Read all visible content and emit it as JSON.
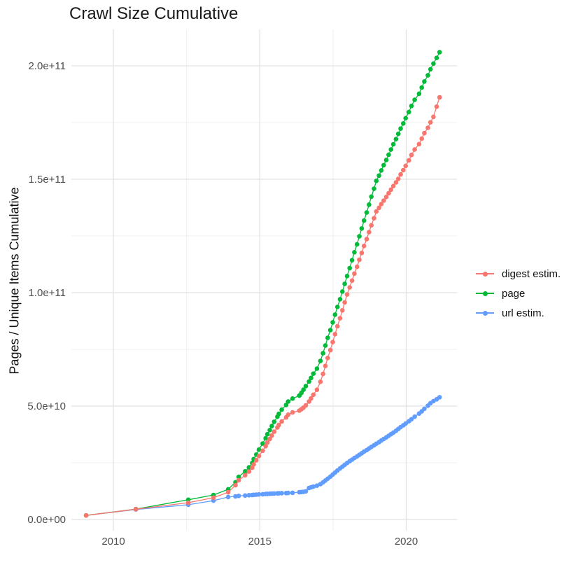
{
  "title": "Crawl Size Cumulative",
  "chart_data": {
    "type": "line",
    "title": "Crawl Size Cumulative",
    "xlabel": "",
    "ylabel": "Pages / Unique Items Cumulative",
    "grid": true,
    "legend_position": "right",
    "value_unit": "billions (1e9 items)",
    "x_range_years": [
      2008.6,
      2021.8
    ],
    "y_range_billions": [
      -5,
      220
    ],
    "x_ticks": {
      "values": [
        2010,
        2015,
        2020
      ],
      "labels": [
        "2010",
        "2015",
        "2020"
      ],
      "minor": [
        2012.5,
        2017.5
      ]
    },
    "y_ticks": {
      "values_billions": [
        0,
        50,
        100,
        150,
        200
      ],
      "labels": [
        "0.0e+00",
        "5.0e+10",
        "1.0e+11",
        "1.5e+11",
        "2.0e+11"
      ],
      "minor_billions": [
        25,
        75,
        125,
        175
      ]
    },
    "series": [
      {
        "name": "digest estim.",
        "color": "#F8766D",
        "points": [
          [
            2009.07,
            1.8
          ],
          [
            2010.77,
            4.55
          ],
          [
            2012.56,
            7.4
          ],
          [
            2013.42,
            9.6
          ],
          [
            2013.92,
            12.0
          ],
          [
            2014.17,
            15.1
          ],
          [
            2014.28,
            17.3
          ],
          [
            2014.5,
            19.5
          ],
          [
            2014.63,
            21.1
          ],
          [
            2014.74,
            22.8
          ],
          [
            2014.79,
            24.3
          ],
          [
            2014.88,
            26.1
          ],
          [
            2014.97,
            28.0
          ],
          [
            2015.1,
            30.3
          ],
          [
            2015.2,
            32.3
          ],
          [
            2015.26,
            33.9
          ],
          [
            2015.34,
            35.5
          ],
          [
            2015.41,
            37.0
          ],
          [
            2015.49,
            38.7
          ],
          [
            2015.6,
            40.6
          ],
          [
            2015.65,
            41.7
          ],
          [
            2015.75,
            43.2
          ],
          [
            2015.9,
            45.0
          ],
          [
            2015.97,
            46.2
          ],
          [
            2016.12,
            47.2
          ],
          [
            2016.35,
            48.0
          ],
          [
            2016.42,
            48.6
          ],
          [
            2016.49,
            49.3
          ],
          [
            2016.57,
            50.3
          ],
          [
            2016.68,
            52.0
          ],
          [
            2016.75,
            53.4
          ],
          [
            2016.83,
            55.0
          ],
          [
            2016.95,
            57.2
          ],
          [
            2017.07,
            60.7
          ],
          [
            2017.16,
            64.2
          ],
          [
            2017.24,
            67.7
          ],
          [
            2017.32,
            71.2
          ],
          [
            2017.41,
            74.7
          ],
          [
            2017.49,
            78.2
          ],
          [
            2017.57,
            81.7
          ],
          [
            2017.65,
            85.2
          ],
          [
            2017.74,
            88.7
          ],
          [
            2017.82,
            92.2
          ],
          [
            2017.9,
            95.7
          ],
          [
            2017.98,
            99.2
          ],
          [
            2018.07,
            102.3
          ],
          [
            2018.15,
            105.3
          ],
          [
            2018.23,
            108.4
          ],
          [
            2018.32,
            111.4
          ],
          [
            2018.4,
            114.5
          ],
          [
            2018.48,
            117.5
          ],
          [
            2018.56,
            120.6
          ],
          [
            2018.65,
            123.6
          ],
          [
            2018.73,
            126.7
          ],
          [
            2018.81,
            129.7
          ],
          [
            2018.9,
            132.8
          ],
          [
            2018.98,
            135.8
          ],
          [
            2019.07,
            137.4
          ],
          [
            2019.15,
            139.0
          ],
          [
            2019.23,
            140.6
          ],
          [
            2019.32,
            142.2
          ],
          [
            2019.4,
            143.8
          ],
          [
            2019.48,
            145.4
          ],
          [
            2019.56,
            147.0
          ],
          [
            2019.65,
            148.6
          ],
          [
            2019.73,
            150.2
          ],
          [
            2019.81,
            152.1
          ],
          [
            2019.9,
            154.0
          ],
          [
            2019.98,
            155.9
          ],
          [
            2020.09,
            158.3
          ],
          [
            2020.18,
            160.7
          ],
          [
            2020.29,
            163.1
          ],
          [
            2020.44,
            165.5
          ],
          [
            2020.53,
            167.9
          ],
          [
            2020.62,
            170.3
          ],
          [
            2020.74,
            172.7
          ],
          [
            2020.83,
            175.1
          ],
          [
            2020.93,
            177.5
          ],
          [
            2021.04,
            182.0
          ],
          [
            2021.14,
            186.1
          ]
        ]
      },
      {
        "name": "page",
        "color": "#00BA38",
        "points": [
          [
            2009.07,
            1.8
          ],
          [
            2010.77,
            4.6
          ],
          [
            2012.56,
            8.7
          ],
          [
            2013.42,
            10.8
          ],
          [
            2013.92,
            13.3
          ],
          [
            2014.17,
            16.4
          ],
          [
            2014.28,
            18.8
          ],
          [
            2014.5,
            21.2
          ],
          [
            2014.63,
            23.0
          ],
          [
            2014.74,
            24.9
          ],
          [
            2014.79,
            26.6
          ],
          [
            2014.88,
            28.6
          ],
          [
            2014.97,
            30.8
          ],
          [
            2015.1,
            33.5
          ],
          [
            2015.2,
            35.8
          ],
          [
            2015.26,
            37.6
          ],
          [
            2015.34,
            39.4
          ],
          [
            2015.41,
            41.2
          ],
          [
            2015.49,
            43.1
          ],
          [
            2015.6,
            45.3
          ],
          [
            2015.65,
            46.6
          ],
          [
            2015.75,
            48.4
          ],
          [
            2015.9,
            50.5
          ],
          [
            2015.97,
            52.0
          ],
          [
            2016.12,
            53.3
          ],
          [
            2016.35,
            54.6
          ],
          [
            2016.42,
            55.8
          ],
          [
            2016.49,
            57.2
          ],
          [
            2016.57,
            58.8
          ],
          [
            2016.68,
            60.8
          ],
          [
            2016.75,
            62.4
          ],
          [
            2016.83,
            64.3
          ],
          [
            2016.95,
            66.5
          ],
          [
            2017.07,
            69.9
          ],
          [
            2017.16,
            73.3
          ],
          [
            2017.24,
            76.7
          ],
          [
            2017.32,
            80.1
          ],
          [
            2017.41,
            83.5
          ],
          [
            2017.49,
            86.9
          ],
          [
            2017.57,
            90.3
          ],
          [
            2017.65,
            93.7
          ],
          [
            2017.74,
            97.1
          ],
          [
            2017.82,
            100.5
          ],
          [
            2017.9,
            103.9
          ],
          [
            2017.98,
            107.3
          ],
          [
            2018.07,
            110.8
          ],
          [
            2018.15,
            114.3
          ],
          [
            2018.23,
            117.8
          ],
          [
            2018.32,
            121.3
          ],
          [
            2018.4,
            124.8
          ],
          [
            2018.48,
            128.3
          ],
          [
            2018.56,
            131.8
          ],
          [
            2018.65,
            135.3
          ],
          [
            2018.73,
            138.8
          ],
          [
            2018.81,
            142.3
          ],
          [
            2018.9,
            145.8
          ],
          [
            2018.98,
            149.3
          ],
          [
            2019.07,
            151.6
          ],
          [
            2019.15,
            153.9
          ],
          [
            2019.23,
            156.2
          ],
          [
            2019.32,
            158.5
          ],
          [
            2019.4,
            160.8
          ],
          [
            2019.48,
            163.1
          ],
          [
            2019.56,
            165.4
          ],
          [
            2019.65,
            167.7
          ],
          [
            2019.73,
            170.0
          ],
          [
            2019.81,
            172.3
          ],
          [
            2019.9,
            174.6
          ],
          [
            2019.98,
            176.9
          ],
          [
            2020.09,
            179.6
          ],
          [
            2020.18,
            182.3
          ],
          [
            2020.29,
            185.0
          ],
          [
            2020.44,
            187.7
          ],
          [
            2020.53,
            190.4
          ],
          [
            2020.62,
            193.1
          ],
          [
            2020.74,
            195.8
          ],
          [
            2020.83,
            198.5
          ],
          [
            2020.93,
            201.0
          ],
          [
            2021.04,
            203.5
          ],
          [
            2021.14,
            206.0
          ]
        ]
      },
      {
        "name": "url estim.",
        "color": "#619CFF",
        "points": [
          [
            2009.07,
            1.8
          ],
          [
            2010.77,
            4.4
          ],
          [
            2012.56,
            6.5
          ],
          [
            2013.42,
            8.3
          ],
          [
            2013.92,
            9.9
          ],
          [
            2014.17,
            10.2
          ],
          [
            2014.28,
            10.4
          ],
          [
            2014.5,
            10.55
          ],
          [
            2014.63,
            10.7
          ],
          [
            2014.74,
            10.8
          ],
          [
            2014.79,
            10.85
          ],
          [
            2014.88,
            10.95
          ],
          [
            2014.97,
            11.05
          ],
          [
            2015.1,
            11.15
          ],
          [
            2015.2,
            11.25
          ],
          [
            2015.26,
            11.3
          ],
          [
            2015.34,
            11.35
          ],
          [
            2015.41,
            11.4
          ],
          [
            2015.49,
            11.45
          ],
          [
            2015.6,
            11.5
          ],
          [
            2015.65,
            11.55
          ],
          [
            2015.75,
            11.6
          ],
          [
            2015.9,
            11.65
          ],
          [
            2015.97,
            11.7
          ],
          [
            2016.12,
            11.75
          ],
          [
            2016.35,
            12.0
          ],
          [
            2016.42,
            12.1
          ],
          [
            2016.49,
            12.2
          ],
          [
            2016.57,
            12.4
          ],
          [
            2016.68,
            13.9
          ],
          [
            2016.75,
            14.2
          ],
          [
            2016.83,
            14.5
          ],
          [
            2016.95,
            14.9
          ],
          [
            2017.07,
            15.6
          ],
          [
            2017.16,
            16.4
          ],
          [
            2017.24,
            17.2
          ],
          [
            2017.32,
            18.0
          ],
          [
            2017.41,
            18.9
          ],
          [
            2017.49,
            19.8
          ],
          [
            2017.57,
            20.7
          ],
          [
            2017.65,
            21.6
          ],
          [
            2017.74,
            22.5
          ],
          [
            2017.82,
            23.3
          ],
          [
            2017.9,
            24.1
          ],
          [
            2017.98,
            24.9
          ],
          [
            2018.07,
            25.7
          ],
          [
            2018.15,
            26.4
          ],
          [
            2018.23,
            27.1
          ],
          [
            2018.32,
            27.8
          ],
          [
            2018.4,
            28.5
          ],
          [
            2018.48,
            29.2
          ],
          [
            2018.56,
            29.9
          ],
          [
            2018.65,
            30.6
          ],
          [
            2018.73,
            31.3
          ],
          [
            2018.81,
            32.0
          ],
          [
            2018.9,
            32.7
          ],
          [
            2018.98,
            33.4
          ],
          [
            2019.07,
            34.1
          ],
          [
            2019.15,
            34.8
          ],
          [
            2019.23,
            35.5
          ],
          [
            2019.32,
            36.2
          ],
          [
            2019.4,
            36.9
          ],
          [
            2019.48,
            37.6
          ],
          [
            2019.56,
            38.3
          ],
          [
            2019.65,
            39.1
          ],
          [
            2019.73,
            39.9
          ],
          [
            2019.81,
            40.7
          ],
          [
            2019.9,
            41.5
          ],
          [
            2019.98,
            42.3
          ],
          [
            2020.09,
            43.3
          ],
          [
            2020.18,
            44.2
          ],
          [
            2020.29,
            45.3
          ],
          [
            2020.44,
            46.7
          ],
          [
            2020.53,
            47.7
          ],
          [
            2020.62,
            48.8
          ],
          [
            2020.74,
            50.2
          ],
          [
            2020.83,
            51.3
          ],
          [
            2020.93,
            52.2
          ],
          [
            2021.04,
            53.0
          ],
          [
            2021.14,
            53.9
          ]
        ]
      }
    ]
  },
  "legend": {
    "items": [
      "digest estim.",
      "page",
      "url estim."
    ]
  },
  "colors": {
    "digest": "#F8766D",
    "page": "#00BA38",
    "url": "#619CFF",
    "grid_major": "#e2e2e2",
    "grid_minor": "#efefef",
    "axis_text": "#4d4d4d"
  }
}
